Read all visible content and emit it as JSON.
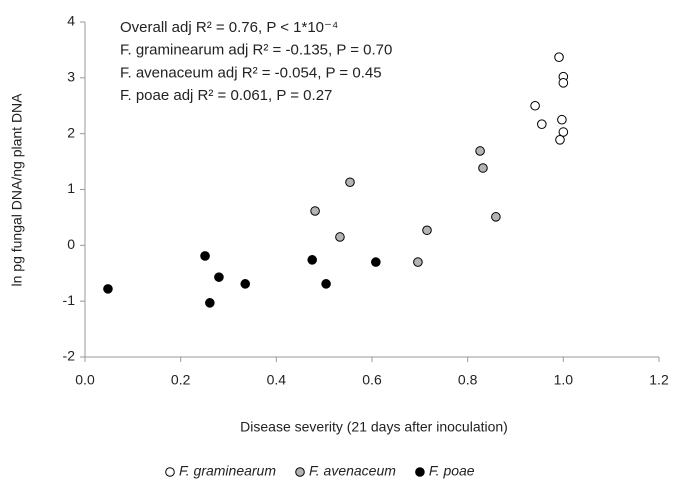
{
  "chart_data": {
    "type": "scatter",
    "annotations": [
      "Overall adj R² = 0.76, P < 1*10⁻⁴",
      "F. graminearum adj R² = -0.135, P = 0.70",
      "F. avenaceum adj R² = -0.054, P = 0.45",
      "F. poae adj R² = 0.061, P = 0.27"
    ],
    "xlabel": "Disease severity (21 days after inoculation)",
    "ylabel": "ln pg fungal DNA/ng plant DNA",
    "xlim": [
      0,
      1.2
    ],
    "ylim": [
      -2,
      4
    ],
    "xticks": [
      {
        "value": 0,
        "label": "0.0"
      },
      0.2,
      0.4,
      0.6,
      0.8,
      {
        "value": 1,
        "label": "1.0"
      },
      1.2
    ],
    "yticks": [
      -2,
      -1,
      0,
      1,
      2,
      3,
      4
    ],
    "series": [
      {
        "name": "F. graminearum",
        "color": "#ffffff",
        "x": [
          0.991,
          1.0,
          1.0,
          0.941,
          0.955,
          0.997,
          1.0,
          0.993
        ],
        "values": [
          3.37,
          3.02,
          2.91,
          2.5,
          2.17,
          2.25,
          2.03,
          1.89
        ]
      },
      {
        "name": "F. avenaceum",
        "color": "#b4b4b4",
        "x": [
          0.826,
          0.832,
          0.859,
          0.715,
          0.696,
          0.554,
          0.481,
          0.533
        ],
        "values": [
          1.69,
          1.385,
          0.51,
          0.27,
          -0.3,
          1.13,
          0.615,
          0.15
        ]
      },
      {
        "name": "F. poae",
        "color": "#000000",
        "x": [
          0.048,
          0.251,
          0.28,
          0.261,
          0.335,
          0.475,
          0.504,
          0.608
        ],
        "values": [
          -0.78,
          -0.19,
          -0.57,
          -1.03,
          -0.69,
          -0.26,
          -0.69,
          -0.3
        ]
      }
    ]
  }
}
